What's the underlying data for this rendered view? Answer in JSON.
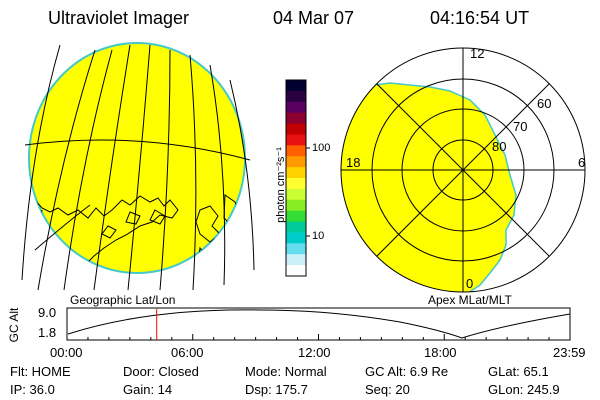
{
  "header": {
    "title": "Ultraviolet Imager",
    "date": "04 Mar 07",
    "time": "04:16:54 UT"
  },
  "colorbar": {
    "unit_label": "photon cm⁻²s⁻¹",
    "ticks": [
      "100",
      "10"
    ],
    "colors": [
      "#000033",
      "#2a0040",
      "#5a0060",
      "#8a0030",
      "#c00000",
      "#e81010",
      "#ff6000",
      "#ff9a00",
      "#ffd200",
      "#ffff30",
      "#ccff33",
      "#88ee22",
      "#33dd33",
      "#00cc99",
      "#00cccc",
      "#66ddee",
      "#ccf0f8",
      "#ffffff"
    ]
  },
  "geo_panel": {
    "label": "Geographic Lat/Lon",
    "fill_color": "#ffff00",
    "rim_color": "#44c8c8"
  },
  "polar_panel": {
    "label": "Apex MLat/MLT",
    "fill_color": "#ffff00",
    "mlt_labels": {
      "top": "12",
      "left": "18",
      "right": "6",
      "bottom": "0"
    },
    "lat_labels": [
      "60",
      "70",
      "80"
    ]
  },
  "altitude_strip": {
    "ylabel": "GC Alt",
    "ytick_top": "9.0",
    "ytick_bottom": "1.8",
    "xticks": [
      "00:00",
      "06:00",
      "12:00",
      "18:00",
      "23:59"
    ],
    "cursor_hour": 4.28,
    "cursor_color": "#ff0000"
  },
  "info": {
    "row1": {
      "flt": "Flt: HOME",
      "door": "Door: Closed",
      "mode": "Mode: Normal",
      "gcalt": "GC Alt: 6.9 Re",
      "glat": "GLat: 65.1"
    },
    "row2": {
      "ip": "IP: 36.0",
      "gain": "Gain: 14",
      "dsp": "Dsp:  175.7",
      "seq": "Seq: 20",
      "glon": "GLon: 245.9"
    }
  }
}
